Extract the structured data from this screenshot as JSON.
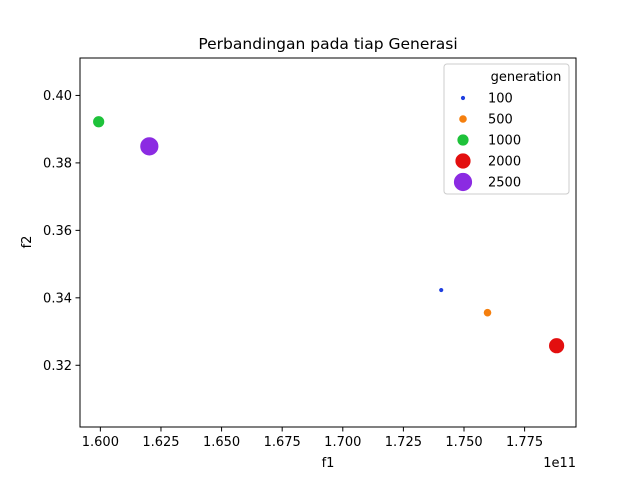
{
  "chart_data": {
    "type": "scatter",
    "title": "Perbandingan pada tiap Generasi",
    "xlabel": "f1",
    "ylabel": "f2",
    "x_offset_label": "1e11",
    "x_scale": 100000000000,
    "xlim": [
      1.5916,
      1.7962
    ],
    "ylim": [
      0.3017,
      0.4111
    ],
    "xticks": [
      1.6,
      1.625,
      1.65,
      1.675,
      1.7,
      1.725,
      1.75,
      1.775
    ],
    "xtick_labels": [
      "1.600",
      "1.625",
      "1.650",
      "1.675",
      "1.700",
      "1.725",
      "1.750",
      "1.775"
    ],
    "yticks": [
      0.32,
      0.34,
      0.36,
      0.38,
      0.4
    ],
    "ytick_labels": [
      "0.32",
      "0.34",
      "0.36",
      "0.38",
      "0.40"
    ],
    "legend_title": "generation",
    "legend_position": "top-right",
    "series": [
      {
        "name": "100",
        "x": 1.7406,
        "y": 0.3423,
        "color": "#1f3fe0",
        "size_rank": 1
      },
      {
        "name": "500",
        "x": 1.7597,
        "y": 0.3356,
        "color": "#f57f0e",
        "size_rank": 2
      },
      {
        "name": "1000",
        "x": 1.5993,
        "y": 0.3922,
        "color": "#1ec23a",
        "size_rank": 3
      },
      {
        "name": "2000",
        "x": 1.7882,
        "y": 0.3258,
        "color": "#e30f0f",
        "size_rank": 4
      },
      {
        "name": "2500",
        "x": 1.6202,
        "y": 0.3849,
        "color": "#8b2be2",
        "size_rank": 5
      }
    ]
  }
}
